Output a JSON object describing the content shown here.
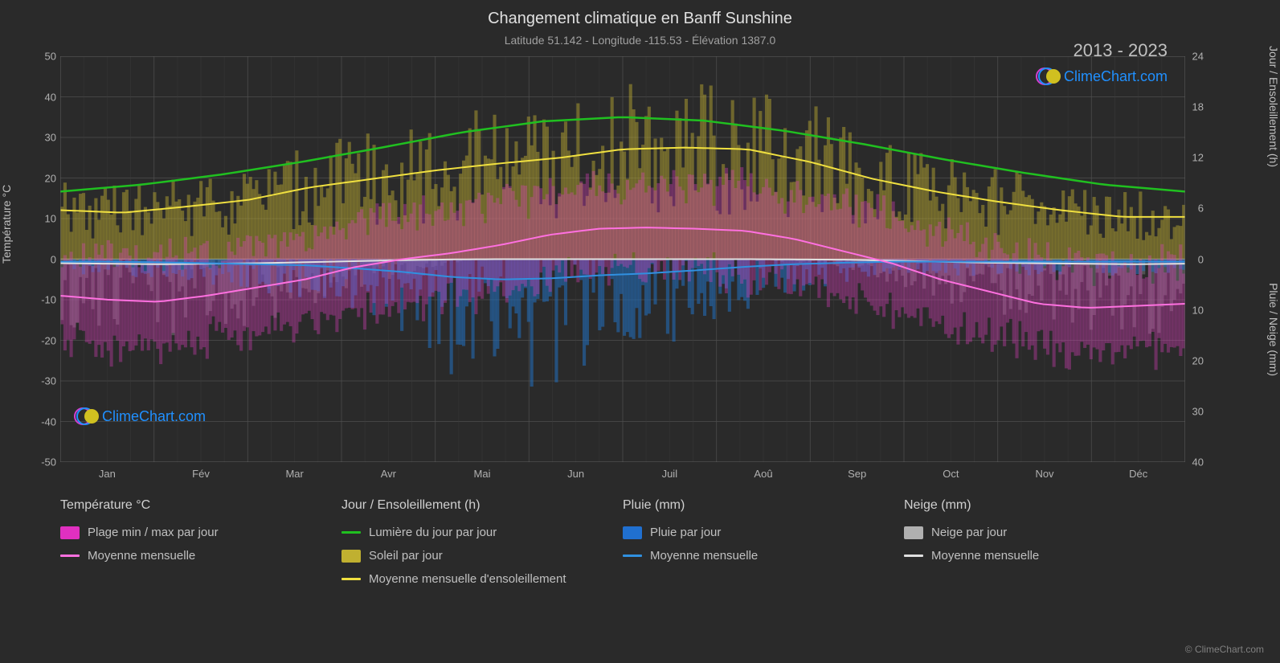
{
  "title": "Changement climatique en Banff Sunshine",
  "subtitle": "Latitude 51.142 - Longitude -115.53 - Élévation 1387.0",
  "year_range": "2013 - 2023",
  "logo_text": "ClimeChart.com",
  "copyright": "© ClimeChart.com",
  "axes": {
    "left_label": "Température °C",
    "right_top_label": "Jour / Ensoleillement (h)",
    "right_bottom_label": "Pluie / Neige (mm)",
    "left_ticks": [
      50,
      40,
      30,
      20,
      10,
      0,
      -10,
      -20,
      -30,
      -40,
      -50
    ],
    "right_top_ticks": [
      24,
      18,
      12,
      6,
      0
    ],
    "right_bottom_ticks": [
      0,
      10,
      20,
      30,
      40
    ],
    "x_labels": [
      "Jan",
      "Fév",
      "Mar",
      "Avr",
      "Mai",
      "Jun",
      "Juil",
      "Aoû",
      "Sep",
      "Oct",
      "Nov",
      "Déc"
    ]
  },
  "chart": {
    "type": "climate-multi",
    "background_color": "#2a2a2a",
    "grid_color": "#505050",
    "grid_color_minor": "#3a3a3a",
    "ylim_left": [
      -50,
      50
    ],
    "ylim_right_top": [
      0,
      24
    ],
    "ylim_right_bottom": [
      0,
      40
    ],
    "zero_line_color": "#808080",
    "series": {
      "daylight": {
        "color": "#20c020",
        "width": 2.5,
        "values": [
          8.0,
          8.8,
          10.0,
          11.5,
          13.2,
          15.0,
          16.3,
          16.8,
          16.4,
          15.2,
          13.6,
          11.8,
          10.2,
          8.8,
          8.0
        ]
      },
      "sunshine_avg": {
        "color": "#f0e040",
        "width": 2,
        "values": [
          5.8,
          5.5,
          6.2,
          7.0,
          8.5,
          9.5,
          10.5,
          11.3,
          12.0,
          13.0,
          13.2,
          13.0,
          11.5,
          9.5,
          8.0,
          6.8,
          5.8,
          5.0,
          5.0
        ]
      },
      "temp_avg": {
        "color": "#ff70e0",
        "width": 2,
        "values": [
          -9,
          -10,
          -10.5,
          -9,
          -7,
          -5,
          -2,
          0,
          1.5,
          3.5,
          6,
          7.5,
          7.8,
          7.5,
          7,
          5,
          2,
          -1,
          -5,
          -8,
          -11,
          -12,
          -11.5,
          -11
        ]
      },
      "rain_avg": {
        "color": "#3090e0",
        "width": 2,
        "values": [
          0.5,
          0.5,
          0.6,
          0.8,
          1.0,
          1.2,
          1.8,
          2.5,
          3.5,
          4.0,
          3.8,
          3.2,
          2.8,
          2.2,
          1.5,
          1.0,
          0.7,
          0.5,
          0.5,
          0.5,
          0.5,
          0.5,
          0.5,
          0.5
        ]
      },
      "snow_avg": {
        "color": "#e0e0e0",
        "width": 2,
        "values": [
          0.8,
          0.9,
          1.0,
          0.9,
          0.8,
          0.6,
          0.4,
          0.2,
          0.05,
          0,
          0,
          0,
          0,
          0,
          0,
          0.05,
          0.1,
          0.3,
          0.5,
          0.7,
          0.8,
          0.9,
          1.0,
          0.9
        ]
      }
    },
    "bars": {
      "temp_range": {
        "color": "#e040c0",
        "opacity": 0.35
      },
      "sunshine": {
        "color": "#c0b030",
        "opacity": 0.45
      },
      "rain": {
        "color": "#2070c0",
        "opacity": 0.55
      },
      "snow": {
        "color": "#808080",
        "opacity": 0.45
      }
    }
  },
  "legend": {
    "temp": {
      "header": "Température °C",
      "range_label": "Plage min / max par jour",
      "range_color": "#e030c0",
      "avg_label": "Moyenne mensuelle",
      "avg_color": "#ff70e0"
    },
    "day": {
      "header": "Jour / Ensoleillement (h)",
      "daylight_label": "Lumière du jour par jour",
      "daylight_color": "#20c020",
      "sun_label": "Soleil par jour",
      "sun_color": "#c0b030",
      "sunavg_label": "Moyenne mensuelle d'ensoleillement",
      "sunavg_color": "#f0e040"
    },
    "rain": {
      "header": "Pluie (mm)",
      "daily_label": "Pluie par jour",
      "daily_color": "#2070d0",
      "avg_label": "Moyenne mensuelle",
      "avg_color": "#3090e0"
    },
    "snow": {
      "header": "Neige (mm)",
      "daily_label": "Neige par jour",
      "daily_color": "#b0b0b0",
      "avg_label": "Moyenne mensuelle",
      "avg_color": "#e0e0e0"
    }
  }
}
